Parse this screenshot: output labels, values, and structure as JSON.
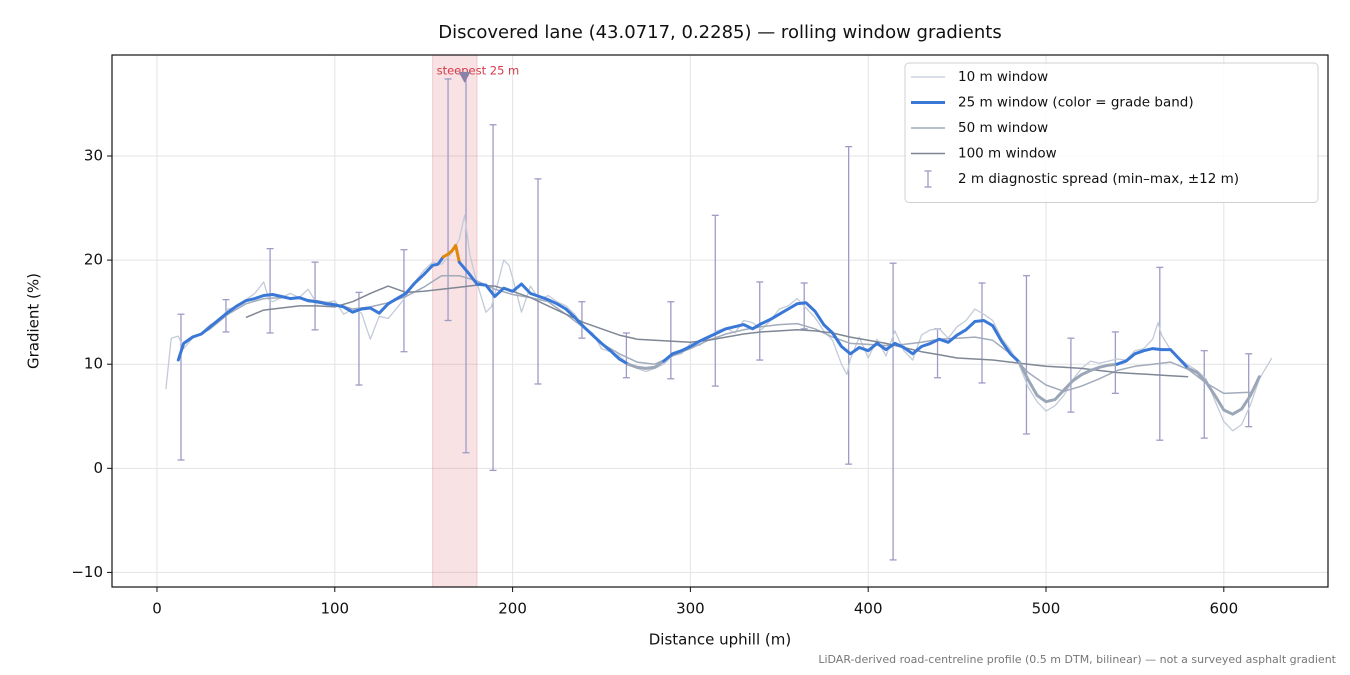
{
  "chart_data": {
    "type": "line",
    "title": "Discovered lane (43.0717, 0.2285) — rolling window gradients",
    "xlabel": "Distance uphill (m)",
    "ylabel": "Gradient (%)",
    "footnote": "LiDAR-derived road-centreline profile (0.5 m DTM, bilinear) — not a surveyed asphalt gradient",
    "xlim": [
      -25.3,
      658.6
    ],
    "ylim": [
      -11.4,
      39.7
    ],
    "xticks": [
      0,
      100,
      200,
      300,
      400,
      500,
      600
    ],
    "yticks": [
      {
        "value": -10,
        "label": "−10"
      },
      0,
      10,
      20,
      30
    ],
    "grid": true,
    "legend": "upper right",
    "series": [
      {
        "name": "10 m window",
        "color": "#c3cbd8",
        "linewidth": 1.3,
        "x": [
          5,
          8,
          12,
          15,
          20,
          25,
          30,
          35,
          40,
          45,
          50,
          55,
          60,
          63,
          65,
          70,
          75,
          80,
          85,
          90,
          95,
          100,
          105,
          110,
          115,
          120,
          125,
          130,
          135,
          140,
          145,
          150,
          155,
          160,
          165,
          170,
          173,
          176,
          180,
          185,
          188,
          192,
          195,
          198,
          200,
          205,
          210,
          215,
          220,
          225,
          230,
          235,
          240,
          245,
          250,
          255,
          260,
          265,
          270,
          275,
          280,
          285,
          290,
          295,
          300,
          305,
          310,
          315,
          320,
          325,
          330,
          335,
          340,
          345,
          350,
          355,
          360,
          365,
          370,
          375,
          380,
          385,
          388,
          390,
          395,
          400,
          405,
          410,
          415,
          420,
          425,
          430,
          435,
          440,
          445,
          450,
          455,
          460,
          465,
          470,
          475,
          480,
          485,
          490,
          495,
          500,
          505,
          510,
          515,
          520,
          525,
          530,
          535,
          540,
          545,
          550,
          555,
          560,
          563,
          565,
          570,
          575,
          580,
          585,
          590,
          595,
          600,
          605,
          610,
          615,
          620,
          627
        ],
        "values": [
          7.6,
          12.5,
          12.7,
          11.5,
          12.5,
          13.0,
          13.8,
          14.1,
          15.3,
          15.5,
          16.2,
          16.8,
          17.9,
          16.2,
          16.0,
          16.4,
          16.8,
          16.4,
          17.2,
          15.8,
          15.9,
          16.1,
          14.8,
          15.3,
          14.9,
          12.4,
          14.6,
          14.4,
          15.4,
          16.5,
          17.9,
          19.0,
          19.8,
          19.6,
          20.5,
          22.0,
          24.3,
          20.5,
          17.8,
          15.0,
          15.5,
          18.0,
          20.0,
          19.5,
          18.3,
          15.0,
          17.5,
          16.2,
          16.6,
          16.0,
          15.6,
          14.8,
          13.5,
          13.0,
          11.5,
          11.2,
          10.8,
          10.0,
          9.6,
          9.3,
          9.6,
          10.0,
          10.8,
          11.0,
          12.0,
          11.8,
          12.4,
          13.2,
          13.5,
          13.0,
          14.2,
          14.0,
          13.3,
          14.2,
          15.3,
          15.6,
          16.3,
          15.4,
          14.5,
          13.2,
          12.3,
          10.0,
          9.0,
          10.5,
          12.6,
          10.6,
          12.4,
          10.8,
          13.2,
          11.3,
          10.4,
          12.8,
          13.3,
          13.4,
          12.5,
          13.6,
          14.2,
          15.3,
          14.8,
          14.2,
          12.5,
          11.4,
          9.9,
          7.8,
          6.4,
          5.5,
          6.0,
          7.0,
          8.5,
          9.6,
          10.3,
          10.1,
          10.3,
          10.5,
          10.4,
          11.3,
          11.5,
          12.4,
          14.0,
          12.8,
          11.4,
          10.6,
          9.9,
          9.4,
          8.6,
          6.5,
          4.5,
          3.6,
          4.2,
          6.1,
          8.6,
          10.6
        ]
      },
      {
        "name": "25 m window (color = grade band)",
        "color": "#3a78d8",
        "linewidth": 3,
        "band_edges": [
          10,
          20
        ],
        "band_colors": [
          "#9ba7b8",
          "#3a78d8",
          "#e0870c"
        ],
        "x": [
          12,
          15,
          20,
          25,
          30,
          35,
          40,
          45,
          50,
          55,
          60,
          65,
          70,
          75,
          80,
          85,
          90,
          95,
          100,
          105,
          110,
          115,
          120,
          125,
          130,
          135,
          140,
          145,
          150,
          155,
          158,
          161,
          164,
          166,
          168,
          170,
          175,
          180,
          185,
          190,
          195,
          200,
          205,
          210,
          215,
          220,
          225,
          230,
          235,
          240,
          245,
          250,
          255,
          260,
          265,
          270,
          275,
          280,
          285,
          290,
          295,
          300,
          305,
          310,
          315,
          320,
          325,
          330,
          335,
          340,
          345,
          350,
          355,
          360,
          365,
          370,
          375,
          380,
          385,
          390,
          395,
          400,
          405,
          410,
          415,
          420,
          425,
          430,
          435,
          440,
          445,
          450,
          455,
          460,
          465,
          470,
          475,
          480,
          485,
          490,
          495,
          500,
          505,
          510,
          515,
          520,
          525,
          530,
          535,
          540,
          545,
          550,
          555,
          560,
          565,
          570,
          575,
          580,
          585,
          590,
          595,
          600,
          605,
          610,
          615,
          620
        ],
        "values": [
          10.4,
          12.0,
          12.6,
          12.9,
          13.6,
          14.3,
          15.0,
          15.6,
          16.1,
          16.3,
          16.6,
          16.7,
          16.5,
          16.3,
          16.4,
          16.1,
          16.0,
          15.8,
          15.7,
          15.5,
          15.0,
          15.3,
          15.4,
          14.9,
          15.8,
          16.3,
          16.8,
          17.8,
          18.6,
          19.5,
          19.6,
          20.3,
          20.6,
          20.9,
          21.4,
          19.8,
          18.8,
          17.7,
          17.6,
          16.5,
          17.3,
          17.0,
          17.7,
          16.8,
          16.5,
          16.2,
          15.8,
          15.3,
          14.5,
          13.6,
          12.8,
          12.0,
          11.3,
          10.5,
          10.0,
          9.7,
          9.6,
          9.7,
          10.3,
          11.0,
          11.3,
          11.7,
          12.2,
          12.6,
          13.0,
          13.4,
          13.6,
          13.8,
          13.4,
          13.9,
          14.3,
          14.8,
          15.3,
          15.8,
          15.9,
          15.1,
          13.8,
          13.0,
          11.7,
          11.0,
          11.6,
          11.3,
          12.0,
          11.4,
          12.0,
          11.6,
          11.0,
          11.7,
          12.0,
          12.4,
          12.1,
          12.8,
          13.3,
          14.1,
          14.2,
          13.7,
          12.2,
          11.0,
          10.2,
          8.5,
          7.0,
          6.4,
          6.6,
          7.5,
          8.4,
          9.0,
          9.4,
          9.7,
          9.9,
          10.0,
          10.3,
          11.0,
          11.3,
          11.5,
          11.4,
          11.4,
          10.5,
          9.6,
          9.2,
          8.3,
          7.0,
          5.6,
          5.2,
          5.7,
          7.0,
          8.8
        ]
      },
      {
        "name": "50 m window",
        "color": "#a2abbb",
        "linewidth": 1.5,
        "x": [
          25,
          30,
          40,
          50,
          60,
          70,
          80,
          90,
          100,
          110,
          120,
          130,
          140,
          150,
          160,
          170,
          180,
          190,
          200,
          210,
          220,
          230,
          240,
          250,
          260,
          270,
          280,
          290,
          300,
          310,
          320,
          330,
          340,
          350,
          360,
          370,
          380,
          390,
          400,
          410,
          420,
          430,
          440,
          450,
          460,
          470,
          480,
          490,
          500,
          510,
          520,
          530,
          540,
          550,
          560,
          570,
          580,
          590,
          600,
          615
        ],
        "values": [
          12.9,
          13.4,
          14.8,
          15.8,
          16.3,
          16.4,
          16.3,
          16.1,
          15.8,
          15.3,
          15.5,
          15.9,
          16.5,
          17.4,
          18.5,
          18.5,
          18.0,
          17.2,
          16.7,
          16.4,
          16.0,
          14.8,
          13.5,
          12.0,
          11.0,
          10.2,
          10.0,
          10.8,
          11.5,
          12.3,
          12.9,
          13.3,
          13.6,
          13.8,
          13.9,
          13.4,
          12.6,
          12.0,
          11.9,
          11.8,
          11.9,
          12.1,
          12.4,
          12.5,
          12.6,
          12.3,
          11.0,
          9.2,
          8.0,
          7.4,
          7.9,
          8.6,
          9.4,
          9.8,
          10.0,
          10.2,
          9.5,
          8.2,
          7.2,
          7.3
        ]
      },
      {
        "name": "100 m window",
        "color": "#7f8794",
        "linewidth": 1.5,
        "x": [
          50,
          60,
          70,
          80,
          90,
          100,
          110,
          120,
          130,
          140,
          150,
          160,
          170,
          180,
          190,
          200,
          210,
          220,
          230,
          240,
          250,
          260,
          270,
          280,
          290,
          300,
          310,
          320,
          330,
          340,
          350,
          360,
          370,
          380,
          390,
          400,
          410,
          420,
          430,
          440,
          450,
          460,
          470,
          480,
          490,
          500,
          510,
          520,
          530,
          540,
          550,
          560,
          570,
          580
        ],
        "values": [
          14.5,
          15.2,
          15.4,
          15.6,
          15.6,
          15.5,
          16.0,
          16.8,
          17.5,
          16.9,
          17.0,
          17.2,
          17.4,
          17.6,
          17.5,
          17.0,
          16.4,
          15.6,
          14.8,
          14.0,
          13.4,
          12.8,
          12.4,
          12.3,
          12.2,
          12.1,
          12.3,
          12.6,
          12.9,
          13.1,
          13.2,
          13.3,
          13.2,
          13.0,
          12.6,
          12.3,
          12.0,
          11.6,
          11.2,
          10.9,
          10.6,
          10.5,
          10.4,
          10.2,
          10.0,
          9.8,
          9.7,
          9.6,
          9.4,
          9.2,
          9.1,
          9.0,
          8.9,
          8.8
        ]
      }
    ],
    "errorbars": {
      "name": "2 m diagnostic spread (min–max, ±12 m)",
      "color": "#9c9cc6",
      "x": [
        13.5,
        38.8,
        63.6,
        88.9,
        113.6,
        138.9,
        163.7,
        173.8,
        189,
        214.3,
        239,
        264,
        289,
        314,
        339,
        364,
        389,
        414,
        439,
        464,
        489,
        514,
        539,
        564,
        589,
        614
      ],
      "low": [
        0.8,
        13.1,
        13.0,
        13.3,
        8.0,
        11.2,
        14.2,
        1.5,
        -0.2,
        8.1,
        12.5,
        8.7,
        8.6,
        7.9,
        10.4,
        13.4,
        0.4,
        -8.8,
        8.7,
        8.2,
        3.3,
        5.4,
        7.2,
        2.7,
        2.9,
        4.0
      ],
      "high": [
        14.8,
        16.2,
        21.1,
        19.8,
        16.9,
        21.0,
        37.4,
        38.0,
        33.0,
        27.8,
        16.0,
        13.0,
        16.0,
        24.3,
        17.9,
        17.8,
        30.9,
        19.7,
        13.4,
        17.8,
        18.5,
        12.5,
        13.1,
        19.3,
        11.3,
        11.0
      ]
    },
    "highlight": {
      "label": "steepest 25 m",
      "color": "#d33a48",
      "xrange": [
        155,
        180
      ],
      "marker_x": 173,
      "marker_y": 37.6,
      "marker_color": "#8a80a8"
    }
  }
}
